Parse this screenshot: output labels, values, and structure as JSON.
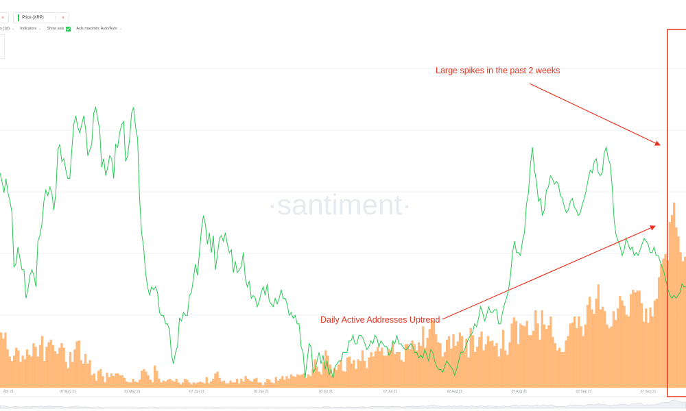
{
  "toolbar": {
    "tabs": [
      {
        "label": "",
        "close": "×",
        "color": "#ffffff"
      },
      {
        "label": "Price (XRP)",
        "close": "×",
        "menu": "⋮",
        "color": "#26c953"
      }
    ],
    "options": [
      {
        "label": "s (1d)",
        "chevron": "⌄"
      },
      {
        "label": "Indicators",
        "chevron": "⌄"
      },
      {
        "label": "Show axis",
        "checked": true
      },
      {
        "label": "Axis max/min: Auto/Auto",
        "chevron": "⌄"
      }
    ]
  },
  "watermark": "·santiment·",
  "annotations": {
    "spikes_text": "Large spikes in the past 2 weeks",
    "uptrend_text": "Daily Active Addresses Uptrend",
    "color": "#e8321f"
  },
  "colors": {
    "bar": "#ffb97a",
    "line": "#26c953",
    "grid": "#eef0f3"
  },
  "chart_data": {
    "type": "bar",
    "x_ticks": [
      "Apr 21",
      "07 May 21",
      "02 May 21",
      "07 Jun 21",
      "02 Jun 21",
      "02 Jul 21",
      "07 Jul 21",
      "02 Aug 21",
      "07 Aug 21",
      "02 Sep 21",
      "07 Sep 21",
      "02 Sep 21"
    ],
    "series": [
      {
        "name": "Daily Active Addresses",
        "kind": "bar",
        "values": [
          62,
          55,
          62,
          43,
          35,
          30,
          36,
          45,
          42,
          29,
          36,
          32,
          43,
          37,
          35,
          50,
          46,
          35,
          48,
          58,
          30,
          46,
          51,
          54,
          48,
          41,
          38,
          45,
          50,
          45,
          29,
          22,
          40,
          29,
          43,
          52,
          53,
          31,
          27,
          38,
          27,
          31,
          14,
          16,
          8,
          19,
          21,
          13,
          6,
          17,
          12,
          16,
          13,
          16,
          16,
          14,
          14,
          11,
          7,
          6,
          6,
          10,
          7,
          6,
          9,
          19,
          21,
          18,
          14,
          9,
          6,
          25,
          19,
          10,
          6,
          8,
          7,
          9,
          10,
          8,
          7,
          10,
          6,
          4,
          6,
          10,
          9,
          6,
          4,
          6,
          5,
          6,
          7,
          6,
          5,
          12,
          5,
          7,
          10,
          16,
          18,
          11,
          7,
          8,
          5,
          5,
          8,
          6,
          6,
          10,
          5,
          10,
          7,
          13,
          10,
          8,
          7,
          10,
          11,
          6,
          6,
          3,
          6,
          10,
          9,
          6,
          5,
          12,
          8,
          10,
          13,
          9,
          13,
          10,
          15,
          13,
          12,
          15,
          14,
          15,
          16,
          11,
          15,
          13,
          21,
          32,
          24,
          18,
          15,
          29,
          42,
          36,
          26,
          14,
          22,
          20,
          26,
          31,
          19,
          18,
          34,
          35,
          27,
          31,
          21,
          32,
          30,
          42,
          30,
          22,
          34,
          40,
          35,
          41,
          46,
          41,
          45,
          36,
          36,
          44,
          42,
          51,
          38,
          40,
          40,
          31,
          29,
          49,
          49,
          43,
          53,
          49,
          42,
          51,
          47,
          69,
          45,
          56,
          66,
          76,
          75,
          60,
          51,
          50,
          35,
          40,
          54,
          58,
          44,
          60,
          47,
          52,
          62,
          58,
          41,
          55,
          34,
          67,
          59,
          40,
          46,
          57,
          63,
          42,
          49,
          58,
          52,
          53,
          47,
          50,
          35,
          44,
          65,
          42,
          37,
          51,
          72,
          79,
          75,
          49,
          72,
          70,
          69,
          75,
          59,
          59,
          64,
          87,
          72,
          54,
          87,
          71,
          66,
          70,
          80,
          57,
          50,
          42,
          45,
          40,
          40,
          53,
          58,
          72,
          73,
          80,
          67,
          80,
          69,
          58,
          71,
          93,
          102,
          88,
          83,
          100,
          116,
          88,
          91,
          86,
          71,
          67,
          69,
          86,
          76,
          89,
          103,
          98,
          92,
          82,
          80,
          105,
          110,
          107,
          109,
          109,
          95,
          74,
          89,
          73,
          90,
          80,
          98,
          100,
          124,
          139,
          145,
          150,
          143,
          186,
          194,
          208,
          180,
          170,
          152,
          142,
          147
        ]
      },
      {
        "name": "Price (XRP)",
        "kind": "line",
        "y_range": [
          0,
          1
        ],
        "values": [
          0.73,
          0.7,
          0.66,
          0.71,
          0.66,
          0.63,
          0.59,
          0.4,
          0.41,
          0.47,
          0.43,
          0.39,
          0.39,
          0.29,
          0.32,
          0.37,
          0.39,
          0.37,
          0.33,
          0.49,
          0.51,
          0.55,
          0.63,
          0.67,
          0.65,
          0.68,
          0.66,
          0.6,
          0.66,
          0.81,
          0.83,
          0.77,
          0.78,
          0.74,
          0.71,
          0.71,
          0.81,
          0.9,
          0.93,
          0.89,
          0.87,
          0.9,
          0.93,
          0.88,
          0.79,
          0.81,
          0.83,
          0.94,
          0.96,
          0.92,
          0.88,
          0.75,
          0.78,
          0.72,
          0.75,
          0.79,
          0.78,
          0.71,
          0.83,
          0.82,
          0.87,
          0.9,
          0.91,
          0.77,
          0.79,
          0.85,
          0.94,
          0.96,
          0.89,
          0.85,
          0.64,
          0.52,
          0.47,
          0.38,
          0.33,
          0.3,
          0.33,
          0.32,
          0.33,
          0.31,
          0.24,
          0.23,
          0.23,
          0.2,
          0.2,
          0.18,
          0.09,
          0.06,
          0.1,
          0.12,
          0.22,
          0.21,
          0.24,
          0.23,
          0.23,
          0.3,
          0.31,
          0.36,
          0.41,
          0.37,
          0.45,
          0.53,
          0.58,
          0.55,
          0.48,
          0.52,
          0.45,
          0.51,
          0.39,
          0.44,
          0.5,
          0.51,
          0.49,
          0.52,
          0.48,
          0.45,
          0.46,
          0.38,
          0.42,
          0.38,
          0.39,
          0.4,
          0.45,
          0.36,
          0.33,
          0.35,
          0.29,
          0.3,
          0.29,
          0.26,
          0.28,
          0.31,
          0.33,
          0.3,
          0.34,
          0.28,
          0.27,
          0.26,
          0.29,
          0.27,
          0.29,
          0.32,
          0.29,
          0.29,
          0.27,
          0.23,
          0.24,
          0.22,
          0.23,
          0.2,
          0.2,
          0.12,
          0.1,
          0.01,
          0.07,
          0.13,
          0.12,
          0.03,
          0.04,
          0.07,
          0.1,
          0.06,
          0.09,
          0.04,
          0.07,
          0.02,
          0.04,
          0.01,
          0.05,
          0.06,
          0.07,
          0.07,
          0.1,
          0.1,
          0.1,
          0.14,
          0.14,
          0.16,
          0.13,
          0.13,
          0.16,
          0.16,
          0.15,
          0.13,
          0.11,
          0.12,
          0.14,
          0.13,
          0.16,
          0.15,
          0.12,
          0.14,
          0.13,
          0.12,
          0.12,
          0.09,
          0.1,
          0.14,
          0.13,
          0.16,
          0.13,
          0.13,
          0.12,
          0.11,
          0.11,
          0.12,
          0.13,
          0.12,
          0.1,
          0.1,
          0.08,
          0.09,
          0.08,
          0.11,
          0.09,
          0.07,
          0.11,
          0.1,
          0.07,
          0.05,
          0.04,
          0.04,
          0.03,
          0.05,
          0.07,
          0.06,
          0.05,
          0.04,
          0.02,
          0.04,
          0.07,
          0.1,
          0.1,
          0.11,
          0.13,
          0.15,
          0.16,
          0.17,
          0.2,
          0.19,
          0.22,
          0.26,
          0.24,
          0.21,
          0.23,
          0.26,
          0.24,
          0.24,
          0.25,
          0.25,
          0.2,
          0.2,
          0.24,
          0.27,
          0.29,
          0.32,
          0.37,
          0.45,
          0.49,
          0.45,
          0.45,
          0.44,
          0.49,
          0.52,
          0.62,
          0.66,
          0.76,
          0.82,
          0.74,
          0.7,
          0.63,
          0.64,
          0.58,
          0.6,
          0.67,
          0.68,
          0.72,
          0.71,
          0.69,
          0.7,
          0.69,
          0.65,
          0.64,
          0.61,
          0.59,
          0.6,
          0.63,
          0.64,
          0.61,
          0.6,
          0.58,
          0.59,
          0.62,
          0.64,
          0.67,
          0.71,
          0.74,
          0.73,
          0.77,
          0.78,
          0.73,
          0.72,
          0.73,
          0.8,
          0.82,
          0.78,
          0.76,
          0.68,
          0.56,
          0.51,
          0.49,
          0.47,
          0.44,
          0.46,
          0.5,
          0.48,
          0.46,
          0.47,
          0.44,
          0.45,
          0.44,
          0.46,
          0.48,
          0.5,
          0.49,
          0.48,
          0.45,
          0.45,
          0.47,
          0.44,
          0.44,
          0.42,
          0.4,
          0.38,
          0.35,
          0.32,
          0.3,
          0.29,
          0.3,
          0.29,
          0.3,
          0.31,
          0.34,
          0.33,
          0.33
        ]
      }
    ],
    "grid": true,
    "legend": "none"
  }
}
